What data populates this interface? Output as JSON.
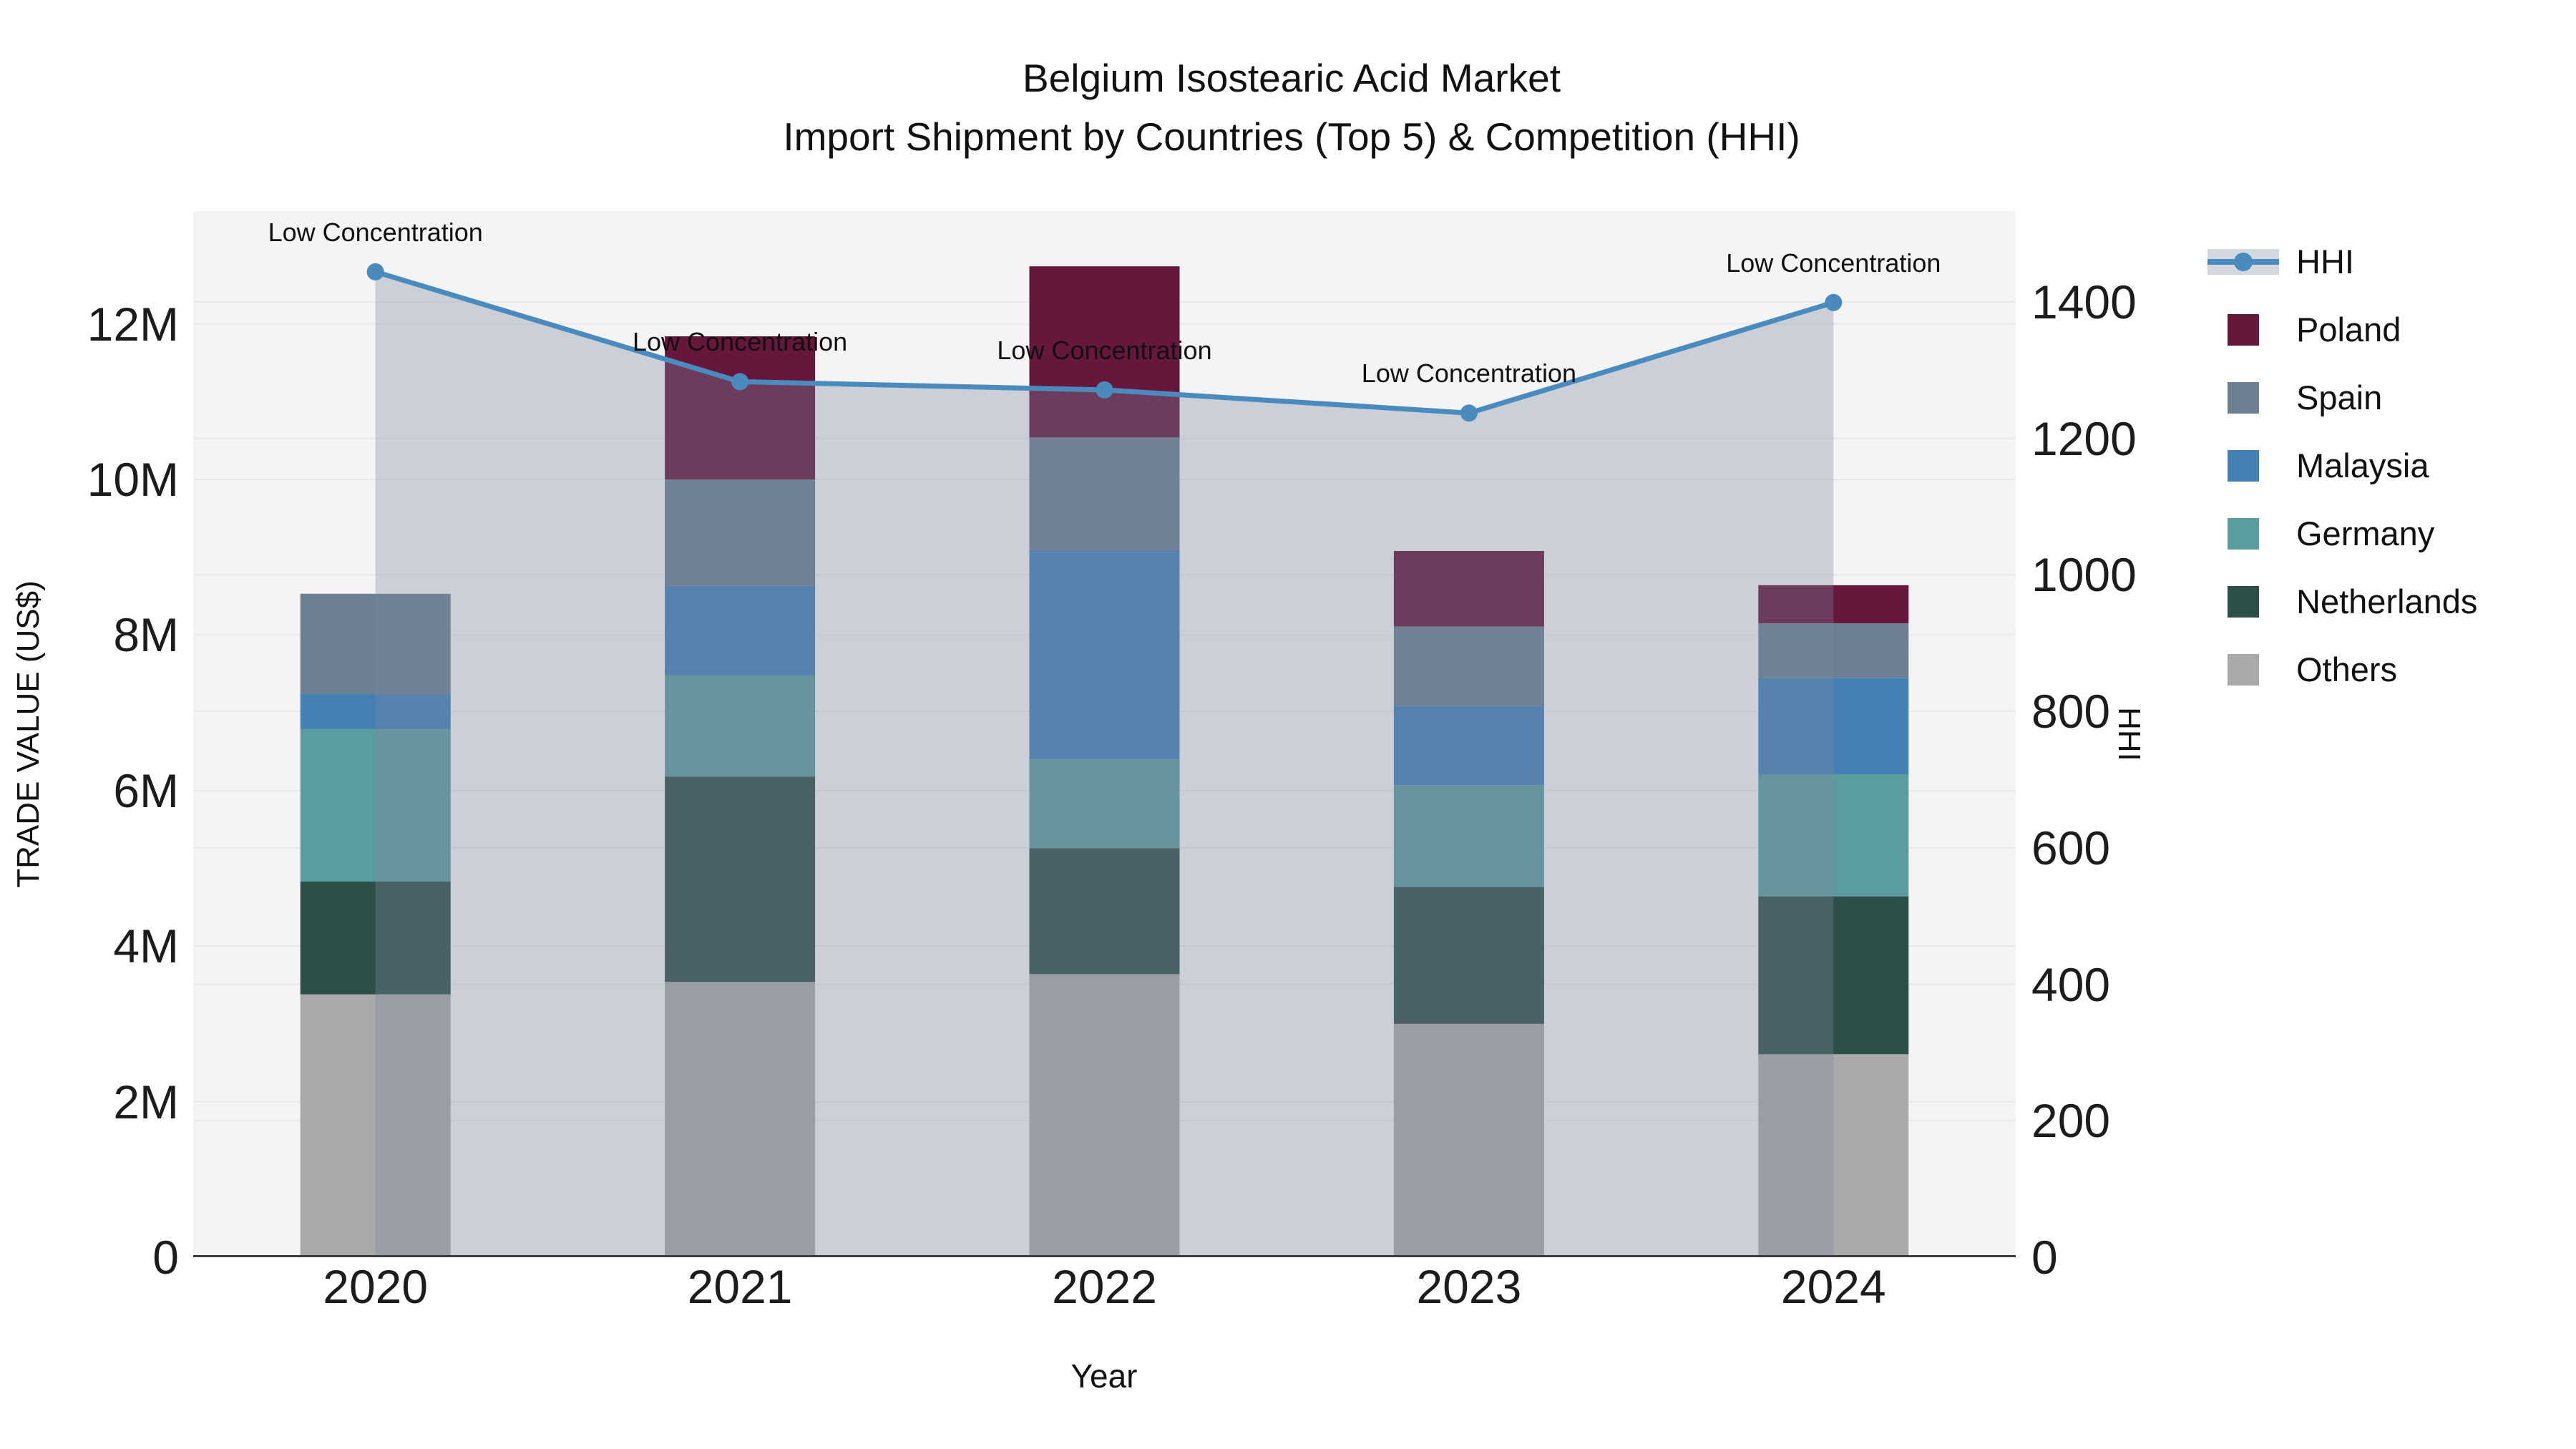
{
  "header": {
    "title_line1": "Belgium Isostearic Acid Market",
    "title_line2": "Import Shipment by Countries (Top 5) & Competition (HHI)"
  },
  "chart_data": {
    "type": "bar",
    "subtype": "stacked-bars-with-line-overlay-dual-axis",
    "title": "Belgium Isostearic Acid Market",
    "subtitle": "Import Shipment by Countries (Top 5) & Competition (HHI)",
    "categories": [
      "2020",
      "2021",
      "2022",
      "2023",
      "2024"
    ],
    "bar_series": [
      {
        "name": "Others",
        "color": "#a9a9a9",
        "values": [
          3380000,
          3540000,
          3640000,
          3000000,
          2610000
        ]
      },
      {
        "name": "Netherlands",
        "color": "#2e4f48",
        "values": [
          1450000,
          2640000,
          1620000,
          1760000,
          2030000
        ]
      },
      {
        "name": "Germany",
        "color": "#5b9d9e",
        "values": [
          1960000,
          1300000,
          1140000,
          1310000,
          1570000
        ]
      },
      {
        "name": "Malaysia",
        "color": "#4381b5",
        "values": [
          450000,
          1150000,
          2690000,
          1020000,
          1240000
        ]
      },
      {
        "name": "Spain",
        "color": "#6d8093",
        "values": [
          1290000,
          1370000,
          1450000,
          1020000,
          700000
        ]
      },
      {
        "name": "Poland",
        "color": "#67163c",
        "values": [
          0,
          1840000,
          2200000,
          970000,
          490000
        ]
      }
    ],
    "line_series": {
      "name": "HHI",
      "color": "#4a8bbf",
      "fill_color": "rgba(122,136,158,0.34)",
      "legend_band_color": "#d3d7df",
      "values": [
        1444,
        1283,
        1271,
        1237,
        1399
      ],
      "annotations": [
        "Low Concentration",
        "Low Concentration",
        "Low Concentration",
        "Low Concentration",
        "Low Concentration"
      ]
    },
    "xlabel": "Year",
    "ylabel": "TRADE VALUE (US$)",
    "y2label": "HHI",
    "yticks": [
      "0",
      "2M",
      "4M",
      "6M",
      "8M",
      "10M",
      "12M"
    ],
    "ytick_values": [
      0,
      2000000,
      4000000,
      6000000,
      8000000,
      10000000,
      12000000
    ],
    "y2ticks": [
      "0",
      "200",
      "400",
      "600",
      "800",
      "1000",
      "1200",
      "1400"
    ],
    "y2tick_values": [
      0,
      200,
      400,
      600,
      800,
      1000,
      1200,
      1400
    ],
    "ylim": [
      0,
      13450000
    ],
    "y2lim": [
      0,
      1533
    ],
    "grid": true,
    "grid_color": "#e7e8ea",
    "plot_bg_color": "#f4f4f5",
    "axis_line_color": "#3d3d3d",
    "legend_position": "right",
    "legend_items": [
      "HHI",
      "Poland",
      "Spain",
      "Malaysia",
      "Germany",
      "Netherlands",
      "Others"
    ]
  }
}
